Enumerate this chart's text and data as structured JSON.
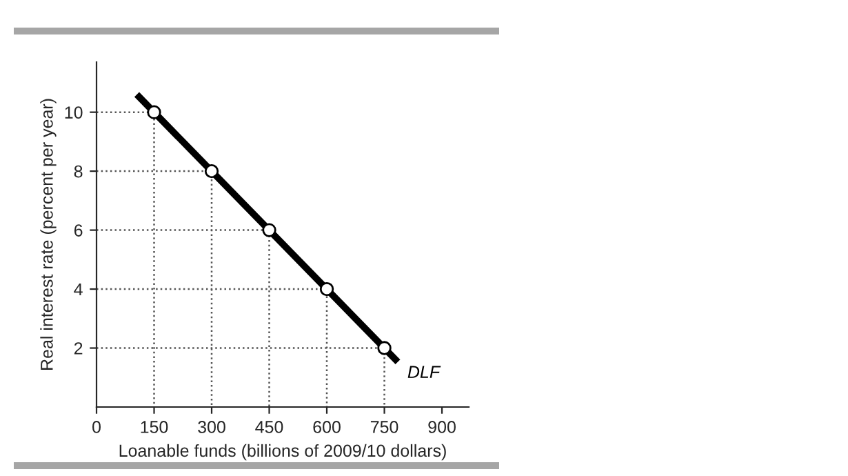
{
  "chart_data": {
    "type": "line",
    "xlabel": "Loanable funds (billions of 2009/10 dollars)",
    "ylabel": "Real interest rate (percent per year)",
    "series": [
      {
        "name": "DLF",
        "color": "#000000",
        "x": [
          105,
          785
        ],
        "values": [
          10.6,
          1.53
        ]
      },
      {
        "type": "line",
        "line_style": "dotted",
        "color": "#555555",
        "x": [
          0,
          150,
          150
        ],
        "values": [
          10,
          10,
          0
        ]
      },
      {
        "type": "line",
        "line_style": "dotted",
        "color": "#555555",
        "x": [
          0,
          300,
          300
        ],
        "values": [
          8,
          8,
          0
        ]
      },
      {
        "type": "line",
        "line_style": "dotted",
        "color": "#555555",
        "x": [
          0,
          450,
          450
        ],
        "values": [
          6,
          6,
          0
        ]
      },
      {
        "type": "line",
        "line_style": "dotted",
        "color": "#555555",
        "x": [
          0,
          600,
          600
        ],
        "values": [
          4,
          4,
          0
        ]
      },
      {
        "type": "line",
        "line_style": "dotted",
        "color": "#555555",
        "x": [
          0,
          750,
          750
        ],
        "values": [
          2,
          2,
          0
        ]
      },
      {
        "type": "scatter",
        "color": "#000000",
        "marker": "circle",
        "x": [
          150,
          300,
          450,
          600,
          750
        ],
        "values": [
          10,
          8,
          6,
          4,
          2
        ]
      }
    ],
    "xlim": [
      0,
      970
    ],
    "xticks": [
      0,
      150,
      300,
      450,
      600,
      750,
      900
    ],
    "ylim": [
      0,
      11.7
    ],
    "yticks": [
      2,
      4,
      6,
      8,
      10
    ]
  }
}
